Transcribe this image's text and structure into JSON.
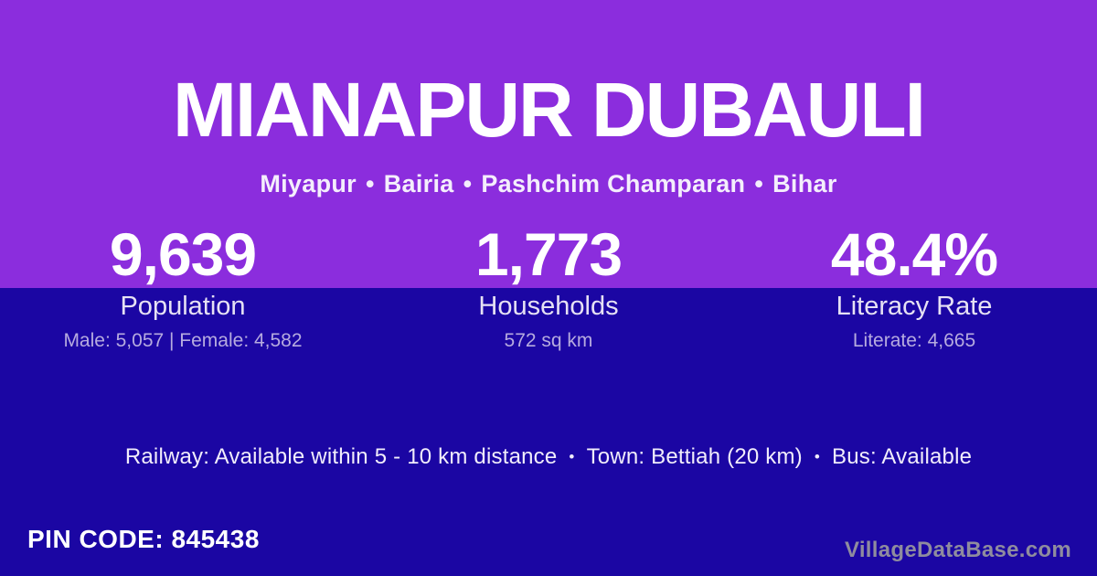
{
  "card": {
    "title": "MIANAPUR DUBAULI",
    "breadcrumb": {
      "separator": "•",
      "parts": [
        "Miyapur",
        "Bairia",
        "Pashchim Champaran",
        "Bihar"
      ]
    },
    "stats": [
      {
        "value": "9,639",
        "label": "Population",
        "detail": "Male: 5,057 | Female: 4,582"
      },
      {
        "value": "1,773",
        "label": "Households",
        "detail": "572 sq km"
      },
      {
        "value": "48.4%",
        "label": "Literacy Rate",
        "detail": "Literate: 4,665"
      }
    ],
    "amenities": {
      "separator": "•",
      "items": [
        "Railway: Available within 5 - 10 km distance",
        "Town: Bettiah (20 km)",
        "Bus: Available"
      ]
    },
    "pin_code": "PIN CODE: 845438",
    "watermark": "VillageDataBase.com",
    "colors": {
      "top_background": "#8b2ddd",
      "bottom_background": "#1b06a3",
      "text_primary": "#ffffff",
      "text_label": "#e6e1f4",
      "text_muted": "#b6abdf",
      "watermark_text": "#8f8c9e"
    }
  }
}
